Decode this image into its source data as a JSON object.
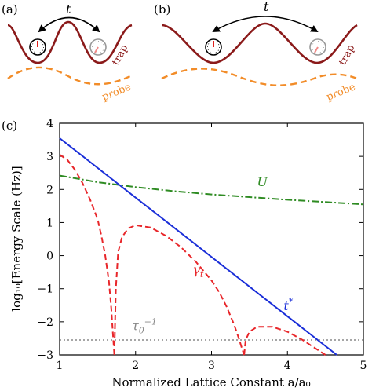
{
  "panels": {
    "a": {
      "label": "(a)",
      "hop_label": "t",
      "trap_label": "trap",
      "probe_label": "probe"
    },
    "b": {
      "label": "(b)",
      "hop_label": "t",
      "trap_label": "trap",
      "probe_label": "probe"
    },
    "c": {
      "label": "(c)"
    }
  },
  "colors": {
    "trap": "#8b1a1a",
    "probe": "#f28c28",
    "U": "#2e8b22",
    "gamma": "#e8262a",
    "tstar": "#1a2ed8",
    "tau": "#888888",
    "clock_hand": "#e0201c"
  },
  "icons": [
    "clock-icon",
    "clock-icon-faded",
    "hop-arrow-icon"
  ],
  "chart_data": {
    "type": "line",
    "xlabel": "Normalized Lattice Constant a/a₀",
    "ylabel": "log₁₀[Energy Scale (Hz)]",
    "xlim": [
      1,
      5
    ],
    "ylim": [
      -3,
      4
    ],
    "xticks": [
      "1",
      "2",
      "3",
      "4",
      "5"
    ],
    "yticks": [
      "−3",
      "−2",
      "−1",
      "0",
      "1",
      "2",
      "3",
      "4"
    ],
    "grid": false,
    "series": [
      {
        "name": "U",
        "style": "dashdot",
        "color": "#2e8b22",
        "x": [
          1.0,
          1.5,
          2.0,
          2.5,
          3.0,
          3.5,
          4.0,
          4.5,
          5.0
        ],
        "y": [
          2.42,
          2.22,
          2.07,
          1.95,
          1.85,
          1.77,
          1.69,
          1.62,
          1.55
        ]
      },
      {
        "name": "t*",
        "style": "solid",
        "color": "#1a2ed8",
        "x": [
          1.0,
          4.65
        ],
        "y": [
          3.55,
          -3.0
        ]
      },
      {
        "name": "γₜ",
        "style": "dashed",
        "color": "#e8262a",
        "segments": [
          {
            "x": [
              1.0,
              1.1,
              1.2,
              1.3,
              1.4,
              1.5,
              1.55,
              1.6,
              1.65,
              1.68,
              1.7,
              1.72
            ],
            "y": [
              3.05,
              2.9,
              2.6,
              2.2,
              1.7,
              1.1,
              0.6,
              0.0,
              -0.8,
              -1.6,
              -2.3,
              -3.0
            ]
          },
          {
            "x": [
              1.72,
              1.74,
              1.77,
              1.82,
              1.9,
              2.0,
              2.2,
              2.4,
              2.6,
              2.8,
              3.0,
              3.1,
              3.2,
              3.3,
              3.36,
              3.4,
              3.43
            ],
            "y": [
              -3.0,
              -1.0,
              0.1,
              0.55,
              0.82,
              0.92,
              0.85,
              0.6,
              0.25,
              -0.2,
              -0.75,
              -1.1,
              -1.55,
              -2.1,
              -2.5,
              -2.8,
              -3.0
            ]
          },
          {
            "x": [
              3.43,
              3.45,
              3.5,
              3.6,
              3.8,
              4.0,
              4.2,
              4.4,
              4.5
            ],
            "y": [
              -3.0,
              -2.55,
              -2.3,
              -2.15,
              -2.15,
              -2.3,
              -2.55,
              -2.85,
              -3.0
            ]
          }
        ]
      },
      {
        "name": "τ₀⁻¹",
        "style": "dotted",
        "color": "#888888",
        "x": [
          1.0,
          5.0
        ],
        "y": [
          -2.55,
          -2.55
        ]
      }
    ],
    "annotations": [
      {
        "series": "U",
        "text": "U",
        "x": 3.6,
        "y": 2.1
      },
      {
        "series": "γₜ",
        "text": "γ",
        "x": 2.75,
        "y": -0.55
      },
      {
        "series": "t*",
        "text": "t",
        "x": 3.95,
        "y": -1.65
      },
      {
        "series": "τ₀⁻¹",
        "text": "τ",
        "x": 1.95,
        "y": -2.25
      }
    ]
  }
}
